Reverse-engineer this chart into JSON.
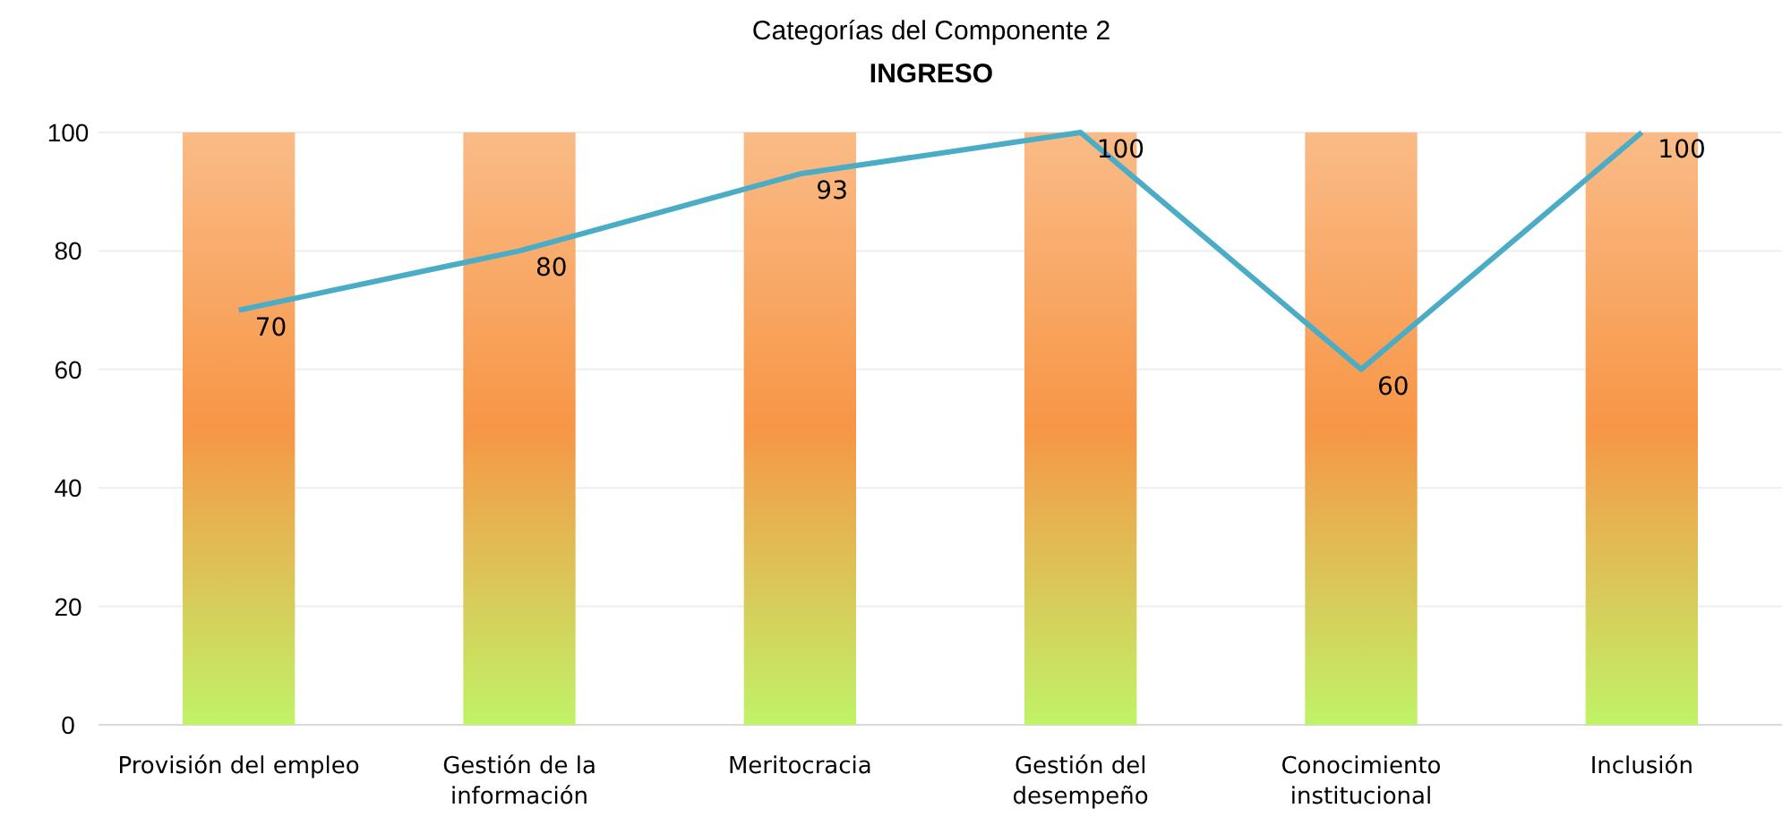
{
  "chart_data": {
    "type": "bar",
    "title": "Categorías del Componente 2",
    "subtitle": "INGRESO",
    "categories": [
      "Provisión del empleo",
      "Gestión de la información",
      "Meritocracia",
      "Gestión del desempeño",
      "Conocimiento institucional",
      "Inclusión"
    ],
    "series": [
      {
        "color": "#f79646",
        "values": [
          100,
          100,
          100,
          100,
          100,
          100
        ]
      },
      {
        "type": "line",
        "color": "#4bacc6",
        "values": [
          70,
          80,
          93,
          100,
          60,
          100
        ],
        "value_labels": [
          "70",
          "80",
          "93",
          "100",
          "60",
          "100"
        ]
      }
    ],
    "ylim": [
      0,
      100
    ],
    "yticks": [
      0,
      20,
      40,
      60,
      80,
      100
    ],
    "grid": "y",
    "marker": "none",
    "line_style": "solid"
  }
}
